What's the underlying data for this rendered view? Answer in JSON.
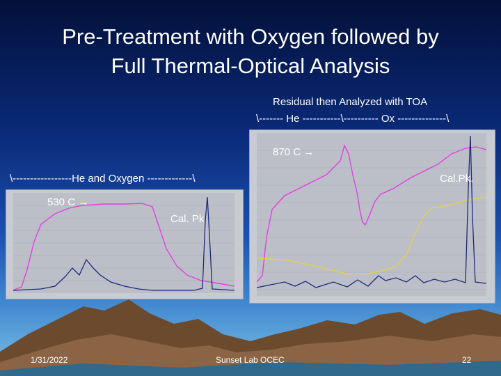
{
  "slide": {
    "title_line1": "Pre-Treatment with Oxygen followed by",
    "title_line2": "Full Thermal-Optical Analysis",
    "right_caption_line1": "Residual then Analyzed with TOA",
    "right_caption_line2": "\\------- He -----------\\---------- Ox --------------\\",
    "left_caption": "\\-----------------He and Oxygen -------------\\",
    "label_870": "870 C",
    "label_cal_right": "Cal.Pk.",
    "label_530": "530 C",
    "label_cal_left": "Cal. Pk",
    "arrow_glyph": "→"
  },
  "footer": {
    "date": "1/31/2022",
    "center": "Sunset Lab OCEC",
    "page": "22"
  },
  "colors": {
    "magenta_trace": "#e23fe0",
    "navy_trace": "#1c2a7a",
    "yellow_trace": "#e8d43a"
  }
}
